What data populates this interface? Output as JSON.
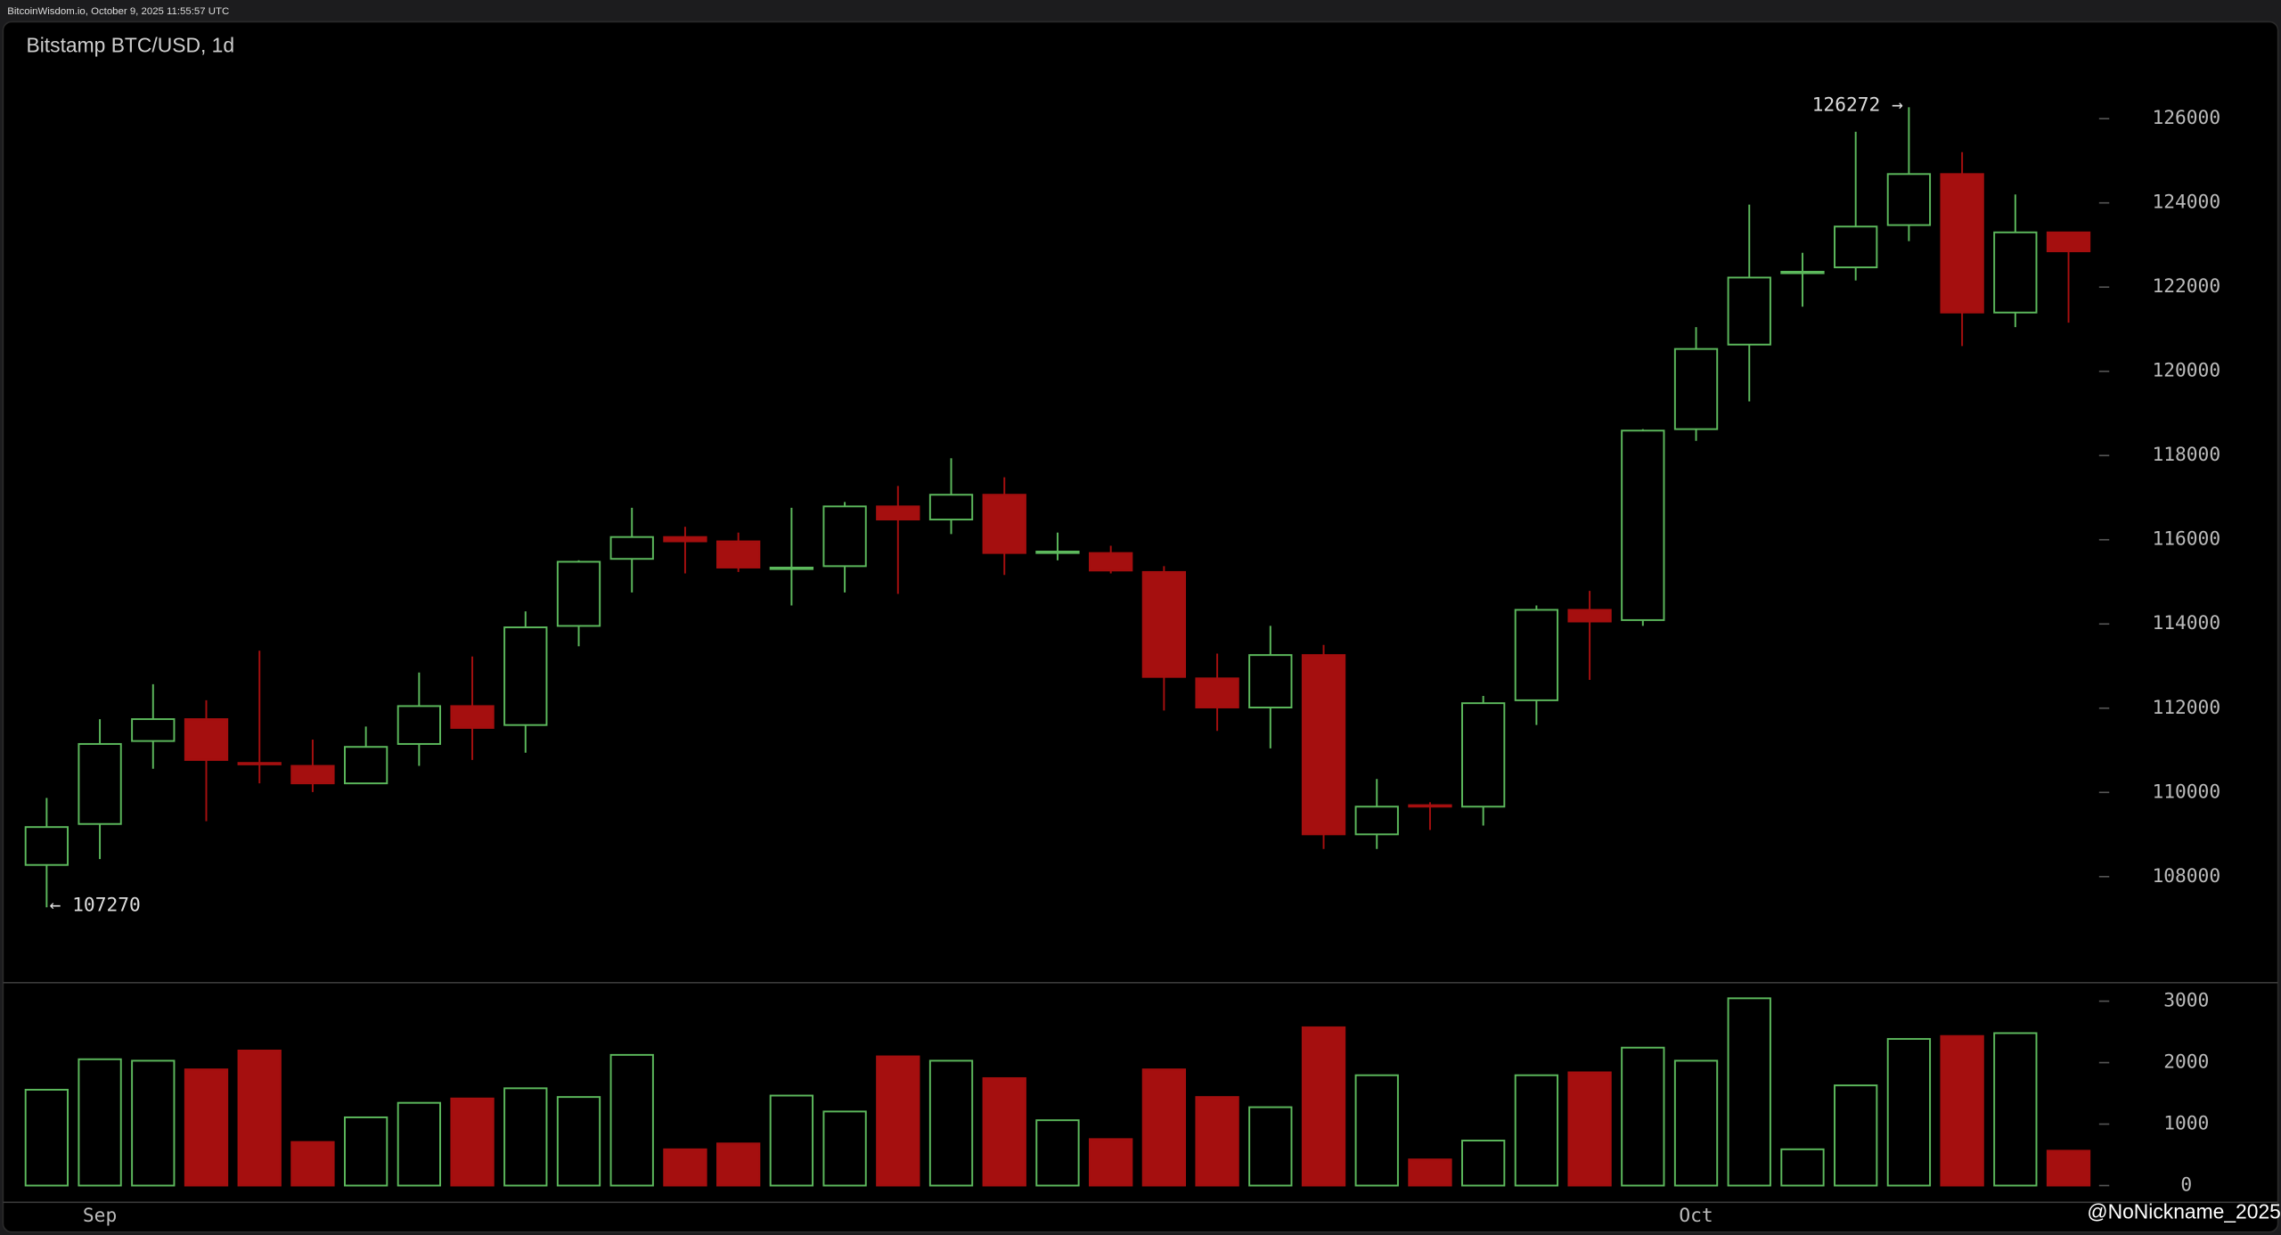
{
  "header": {
    "text": "BitcoinWisdom.io, October 9, 2025 11:55:57 UTC"
  },
  "watermark": "@NoNickname_2025",
  "chart_data": {
    "type": "candlestick",
    "title": "Bitstamp BTC/USD, 1d",
    "x": [
      null,
      "Sep",
      null,
      null,
      null,
      null,
      null,
      null,
      null,
      null,
      null,
      null,
      null,
      null,
      null,
      null,
      null,
      null,
      null,
      null,
      null,
      null,
      null,
      null,
      null,
      null,
      null,
      null,
      null,
      null,
      null,
      "Oct",
      null,
      null,
      null,
      null,
      null,
      null,
      null
    ],
    "open": [
      108277,
      109250,
      111220,
      111740,
      110700,
      110630,
      110215,
      111150,
      112050,
      111600,
      113954,
      115546,
      116065,
      115962,
      115304,
      115373,
      116792,
      116480,
      117069,
      115685,
      115685,
      115235,
      112708,
      112016,
      113262,
      109004,
      109697,
      109662,
      112188,
      114335,
      114092,
      118627,
      120635,
      122330,
      122469,
      123473,
      124685,
      121396,
      123300
    ],
    "high": [
      109869,
      111739,
      112569,
      112188,
      113366,
      111254,
      111565,
      112846,
      113227,
      114300,
      115512,
      116758,
      116308,
      116170,
      116758,
      116896,
      117277,
      117935,
      117485,
      116170,
      115858,
      115373,
      113296,
      113954,
      113504,
      110319,
      109766,
      112292,
      114439,
      114785,
      118627,
      121050,
      123958,
      122815,
      125688,
      126272,
      125204,
      124200,
      123300
    ],
    "low": [
      107270,
      108416,
      110561,
      109315,
      110215,
      110008,
      110210,
      110630,
      110770,
      110942,
      113470,
      114750,
      115200,
      115235,
      114439,
      114750,
      114715,
      116135,
      115165,
      115512,
      115200,
      111946,
      111462,
      111046,
      108658,
      108658,
      109108,
      109212,
      111600,
      112673,
      113954,
      118350,
      119285,
      121535,
      122158,
      123092,
      120600,
      121050,
      121154
    ],
    "close": [
      109177,
      111150,
      111740,
      110770,
      110665,
      110215,
      111081,
      112050,
      111531,
      113920,
      115477,
      116065,
      115962,
      115339,
      115339,
      116792,
      116480,
      117069,
      115685,
      115720,
      115269,
      112742,
      112016,
      113262,
      109004,
      109662,
      109662,
      112119,
      114335,
      114058,
      118592,
      120531,
      122227,
      122365,
      123438,
      124685,
      121396,
      123300,
      122850
    ],
    "high_value_labels": [
      null,
      null,
      null,
      null,
      null,
      null,
      null,
      null,
      null,
      null,
      null,
      null,
      null,
      null,
      null,
      null,
      null,
      null,
      null,
      null,
      null,
      null,
      null,
      null,
      null,
      null,
      null,
      null,
      null,
      null,
      null,
      null,
      null,
      null,
      null,
      "126272 →",
      null,
      null,
      null
    ],
    "low_value_labels": [
      "← 107270",
      null,
      null,
      null,
      null,
      null,
      null,
      null,
      null,
      null,
      null,
      null,
      null,
      null,
      null,
      null,
      null,
      null,
      null,
      null,
      null,
      null,
      null,
      null,
      null,
      null,
      null,
      null,
      null,
      null,
      null,
      null,
      null,
      null,
      null,
      null,
      null,
      null,
      null
    ],
    "volume": [
      1559,
      2055,
      2031,
      1890,
      2197,
      709,
      1110,
      1346,
      1417,
      1583,
      1441,
      2126,
      590,
      685,
      1464,
      1205,
      2102,
      2031,
      1748,
      1063,
      756,
      1890,
      1441,
      1275,
      2575,
      1795,
      425,
      732,
      1795,
      1842,
      2244,
      2031,
      3047,
      590,
      1630,
      2386,
      2433,
      2480,
      567
    ],
    "ylim": [
      105500,
      128300
    ],
    "yticks": [
      108000,
      110000,
      112000,
      114000,
      116000,
      118000,
      120000,
      122000,
      124000,
      126000
    ],
    "volume_ylim": [
      -260,
      3290
    ],
    "volume_yticks": [
      0,
      1000,
      2000,
      3000
    ],
    "up_color": "#5cb85c",
    "down_color": "#a50f0f"
  }
}
